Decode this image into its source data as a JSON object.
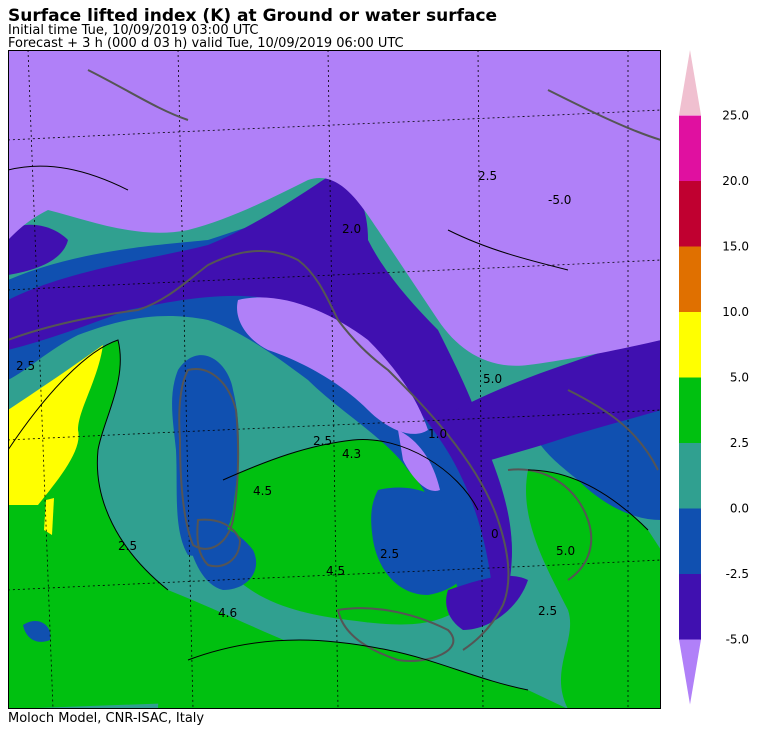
{
  "header": {
    "title": "Surface lifted index (K) at Ground or water surface",
    "initial_time": "Initial time  Tue, 10/09/2019  03:00 UTC",
    "forecast": "Forecast  +   3 h  (000 d 03 h)  valid Tue, 10/09/2019 06:00 UTC"
  },
  "footer": {
    "credit": "Moloch Model, CNR-ISAC, Italy"
  },
  "legend": {
    "labels": [
      "25.0",
      "20.0",
      "15.0",
      "10.0",
      "5.0",
      "2.5",
      "0.0",
      "-2.5",
      "-5.0"
    ],
    "colors": [
      "#f0c0d0",
      "#e010a0",
      "#c00030",
      "#e07000",
      "#ffff00",
      "#00c010",
      "#30a090",
      "#1050b0",
      "#4010b0",
      "#b080f8"
    ]
  },
  "map": {
    "colors": {
      "below_minus5": "#b080f8",
      "minus5_minus2_5": "#4010b0",
      "minus2_5_0": "#1050b0",
      "zero_2_5": "#30a090",
      "two5_5": "#00c010",
      "five_10": "#ffff00",
      "coast": "#555555"
    },
    "contour_labels": [
      {
        "id": "c1",
        "text": "-5.0"
      },
      {
        "id": "c2",
        "text": "2.0"
      },
      {
        "id": "c3",
        "text": "2.5"
      },
      {
        "id": "c4",
        "text": "2.5"
      },
      {
        "id": "c5",
        "text": "4.3"
      },
      {
        "id": "c6",
        "text": "4.5"
      },
      {
        "id": "c7",
        "text": "2.5"
      },
      {
        "id": "c8",
        "text": "2.5"
      },
      {
        "id": "c9",
        "text": "4.5"
      },
      {
        "id": "c10",
        "text": "4.6"
      },
      {
        "id": "c11",
        "text": "5.0"
      },
      {
        "id": "c12",
        "text": "2.5"
      },
      {
        "id": "c13",
        "text": "5.0"
      },
      {
        "id": "c14",
        "text": "2.5"
      },
      {
        "id": "c15",
        "text": "0"
      },
      {
        "id": "c16",
        "text": "1.0"
      }
    ]
  }
}
